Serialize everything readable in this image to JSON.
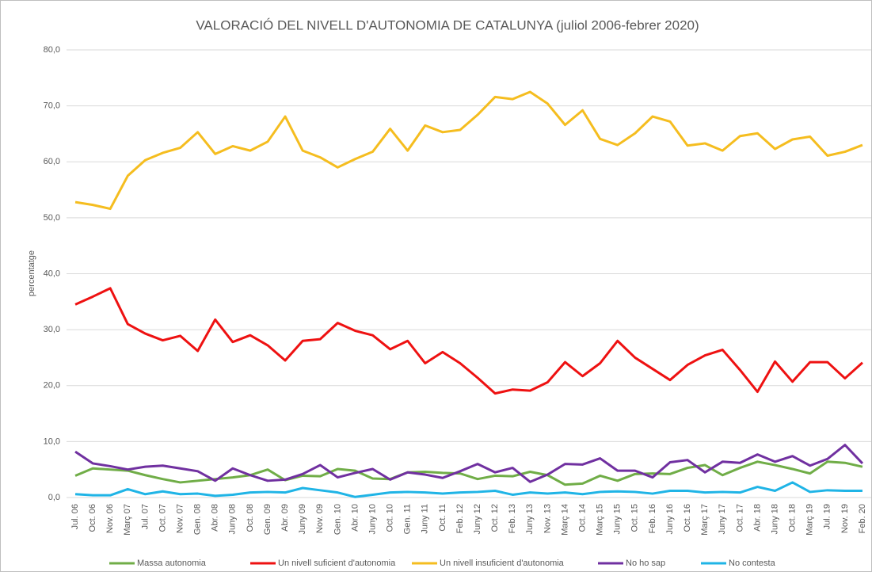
{
  "chart_data": {
    "type": "line",
    "title": "VALORACIÓ DEL NIVELL D'AUTONOMIA DE CATALUNYA (juliol 2006-febrer 2020)",
    "y_label": "percentatge",
    "categories": [
      "Jul. 06",
      "Oct. 06",
      "Nov. 06",
      "Març 07",
      "Jul. 07",
      "Oct. 07",
      "Nov. 07",
      "Gen. 08",
      "Abr. 08",
      "Juny 08",
      "Oct. 08",
      "Gen. 09",
      "Abr. 09",
      "Juny 09",
      "Nov. 09",
      "Gen. 10",
      "Abr. 10",
      "Juny 10",
      "Oct. 10",
      "Gen. 11",
      "Juny 11",
      "Oct. 11",
      "Feb. 12",
      "Juny 12",
      "Oct. 12",
      "Feb. 13",
      "Juny 13",
      "Nov. 13",
      "Març 14",
      "Oct. 14",
      "Març 15",
      "Juny 15",
      "Oct. 15",
      "Feb. 16",
      "Juny 16",
      "Oct. 16",
      "Març 17",
      "Juny 17",
      "Oct. 17",
      "Abr. 18",
      "Juny 18",
      "Oct. 18",
      "Març 19",
      "Jul. 19",
      "Nov. 19",
      "Feb. 20"
    ],
    "series": [
      {
        "name": "Massa autonomia",
        "color": "#70ad47",
        "values": [
          3.9,
          5.2,
          5.0,
          4.8,
          4.0,
          3.3,
          2.7,
          3.0,
          3.3,
          3.6,
          4.0,
          5.0,
          3.1,
          3.9,
          3.8,
          5.1,
          4.8,
          3.4,
          3.3,
          4.5,
          4.6,
          4.4,
          4.3,
          3.3,
          3.9,
          3.8,
          4.6,
          4.0,
          2.3,
          2.5,
          3.9,
          3.0,
          4.2,
          4.3,
          4.2,
          5.3,
          5.8,
          4.0,
          5.3,
          6.4,
          5.8,
          5.1,
          4.3,
          6.4,
          6.2,
          5.5
        ]
      },
      {
        "name": "Un nivell suficient d'autonomia",
        "color": "#ee1111",
        "values": [
          34.5,
          35.9,
          37.4,
          31.0,
          29.3,
          28.1,
          28.9,
          26.2,
          31.8,
          27.8,
          29.0,
          27.2,
          24.5,
          28.0,
          28.3,
          31.2,
          29.8,
          29.0,
          26.5,
          28.0,
          24.0,
          26.0,
          24.0,
          21.4,
          18.6,
          19.3,
          19.1,
          20.6,
          24.2,
          21.7,
          24.0,
          28.0,
          25.0,
          23.0,
          21.0,
          23.7,
          25.4,
          26.4,
          22.8,
          18.9,
          24.3,
          20.7,
          24.2,
          24.2,
          21.3,
          24.1
        ]
      },
      {
        "name": "Un nivell insuficient d'autonomia",
        "color": "#f5bd1f",
        "values": [
          52.8,
          52.3,
          51.6,
          57.5,
          60.3,
          61.6,
          62.5,
          65.3,
          61.4,
          62.8,
          62.0,
          63.6,
          68.1,
          62.0,
          60.8,
          59.0,
          60.5,
          61.8,
          65.9,
          62.0,
          66.5,
          65.3,
          65.7,
          68.4,
          71.6,
          71.2,
          72.5,
          70.4,
          66.6,
          69.2,
          64.1,
          63.0,
          65.1,
          68.1,
          67.2,
          62.9,
          63.3,
          62.0,
          64.6,
          65.1,
          62.3,
          64.0,
          64.5,
          61.1,
          61.8,
          63.0
        ]
      },
      {
        "name": "No ho sap",
        "color": "#7030a0",
        "values": [
          8.2,
          6.1,
          5.6,
          5.0,
          5.5,
          5.7,
          5.2,
          4.7,
          3.0,
          5.2,
          4.0,
          3.0,
          3.2,
          4.2,
          5.8,
          3.6,
          4.4,
          5.1,
          3.2,
          4.5,
          4.1,
          3.5,
          4.7,
          6.0,
          4.5,
          5.3,
          2.8,
          4.1,
          6.0,
          5.9,
          7.0,
          4.8,
          4.8,
          3.6,
          6.3,
          6.7,
          4.5,
          6.4,
          6.2,
          7.7,
          6.4,
          7.4,
          5.7,
          6.9,
          9.4,
          6.1
        ]
      },
      {
        "name": "No contesta",
        "color": "#1fb4e6",
        "values": [
          0.6,
          0.4,
          0.4,
          1.5,
          0.6,
          1.1,
          0.6,
          0.7,
          0.3,
          0.5,
          0.9,
          1.0,
          0.9,
          1.7,
          1.3,
          0.9,
          0.1,
          0.5,
          0.9,
          1.0,
          0.9,
          0.7,
          0.9,
          1.0,
          1.2,
          0.5,
          0.9,
          0.7,
          0.9,
          0.6,
          1.0,
          1.1,
          1.0,
          0.7,
          1.2,
          1.2,
          0.9,
          1.0,
          0.9,
          1.9,
          1.2,
          2.7,
          1.0,
          1.3,
          1.2,
          1.2
        ]
      }
    ],
    "ylim": [
      0,
      80
    ],
    "yticks": [
      {
        "value": 0,
        "label": "0,0"
      },
      {
        "value": 10,
        "label": "10,0"
      },
      {
        "value": 20,
        "label": "20,0"
      },
      {
        "value": 30,
        "label": "30,0"
      },
      {
        "value": 40,
        "label": "40,0"
      },
      {
        "value": 50,
        "label": "50,0"
      },
      {
        "value": 60,
        "label": "60,0"
      },
      {
        "value": 70,
        "label": "70,0"
      },
      {
        "value": 80,
        "label": "80,0"
      }
    ],
    "grid": true,
    "legend": "bottom"
  }
}
